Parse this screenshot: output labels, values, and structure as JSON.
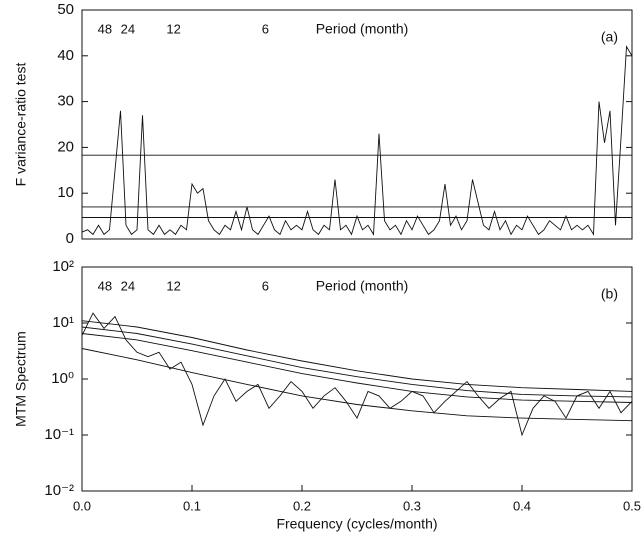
{
  "chart_data": [
    {
      "type": "line",
      "panel_label": "(a)",
      "ylabel": "F variance-ratio test",
      "period_label": "Period (month)",
      "period_ticks": [
        {
          "value": 0.0208,
          "label": "48"
        },
        {
          "value": 0.0417,
          "label": "24"
        },
        {
          "value": 0.0833,
          "label": "12"
        },
        {
          "value": 0.1667,
          "label": "6"
        }
      ],
      "xlim": [
        0,
        0.5
      ],
      "ylim": [
        0,
        50
      ],
      "yticks": [
        0,
        10,
        20,
        30,
        40,
        50
      ],
      "log_scale": false,
      "series": [
        {
          "color": "#111111",
          "x": [
            0,
            0.005,
            0.01,
            0.015,
            0.02,
            0.025,
            0.03,
            0.035,
            0.04,
            0.045,
            0.05,
            0.055,
            0.06,
            0.065,
            0.07,
            0.075,
            0.08,
            0.085,
            0.09,
            0.095,
            0.1,
            0.105,
            0.11,
            0.115,
            0.12,
            0.125,
            0.13,
            0.135,
            0.14,
            0.145,
            0.15,
            0.155,
            0.16,
            0.165,
            0.17,
            0.175,
            0.18,
            0.185,
            0.19,
            0.195,
            0.2,
            0.205,
            0.21,
            0.215,
            0.22,
            0.225,
            0.23,
            0.235,
            0.24,
            0.245,
            0.25,
            0.255,
            0.26,
            0.265,
            0.27,
            0.275,
            0.28,
            0.285,
            0.29,
            0.295,
            0.3,
            0.305,
            0.31,
            0.315,
            0.32,
            0.325,
            0.33,
            0.335,
            0.34,
            0.345,
            0.35,
            0.355,
            0.36,
            0.365,
            0.37,
            0.375,
            0.38,
            0.385,
            0.39,
            0.395,
            0.4,
            0.405,
            0.41,
            0.415,
            0.42,
            0.425,
            0.43,
            0.435,
            0.44,
            0.445,
            0.45,
            0.455,
            0.46,
            0.465,
            0.47,
            0.475,
            0.48,
            0.485,
            0.49,
            0.495,
            0.5
          ],
          "values": [
            1.5,
            2,
            1,
            3,
            1,
            2,
            15,
            28,
            3,
            1,
            2,
            27,
            2,
            1,
            3,
            1,
            2,
            1,
            3,
            2,
            12,
            10,
            11,
            4,
            2,
            1,
            3,
            2,
            6,
            2,
            7,
            2,
            1,
            3,
            5,
            2,
            1,
            4,
            2,
            3,
            2,
            6,
            2,
            1,
            3,
            2,
            13,
            2,
            3,
            1,
            5,
            2,
            3,
            1,
            23,
            4,
            2,
            3,
            1,
            4,
            2,
            5,
            3,
            1,
            2,
            4,
            12,
            3,
            5,
            2,
            4,
            13,
            8,
            3,
            2,
            6,
            2,
            4,
            1,
            3,
            2,
            5,
            3,
            1,
            2,
            4,
            3,
            2,
            5,
            2,
            3,
            2,
            3,
            1,
            30,
            21,
            28,
            3,
            22,
            42,
            40
          ]
        },
        {
          "color": "#111111",
          "x": [
            0,
            0.5
          ],
          "values": [
            18.3,
            18.3
          ]
        },
        {
          "color": "#111111",
          "x": [
            0,
            0.5
          ],
          "values": [
            7,
            7
          ]
        },
        {
          "color": "#111111",
          "x": [
            0,
            0.5
          ],
          "values": [
            4.7,
            4.7
          ]
        }
      ]
    },
    {
      "type": "line",
      "panel_label": "(b)",
      "ylabel": "MTM Spectrum",
      "xlabel": "Frequency (cycles/month)",
      "period_label": "Period (month)",
      "period_ticks": [
        {
          "value": 0.0208,
          "label": "48"
        },
        {
          "value": 0.0417,
          "label": "24"
        },
        {
          "value": 0.0833,
          "label": "12"
        },
        {
          "value": 0.1667,
          "label": "6"
        }
      ],
      "xlim": [
        0,
        0.5
      ],
      "xticks": [
        {
          "value": 0,
          "label": "0.0"
        },
        0.1,
        0.2,
        0.3,
        0.4,
        0.5
      ],
      "ylim": [
        0.01,
        100
      ],
      "log_scale": true,
      "yticks": [
        {
          "value": 0.01,
          "label": "10⁻²"
        },
        {
          "value": 0.1,
          "label": "10⁻¹"
        },
        {
          "value": 1,
          "label": "10⁰"
        },
        {
          "value": 10,
          "label": "10¹"
        },
        {
          "value": 100,
          "label": "10²"
        }
      ],
      "series": [
        {
          "color": "#111111",
          "x": [
            0,
            0.01,
            0.02,
            0.03,
            0.04,
            0.05,
            0.06,
            0.07,
            0.08,
            0.09,
            0.1,
            0.11,
            0.12,
            0.13,
            0.14,
            0.15,
            0.16,
            0.17,
            0.18,
            0.19,
            0.2,
            0.21,
            0.22,
            0.23,
            0.24,
            0.25,
            0.26,
            0.27,
            0.28,
            0.29,
            0.3,
            0.31,
            0.32,
            0.33,
            0.34,
            0.35,
            0.36,
            0.37,
            0.38,
            0.39,
            0.4,
            0.41,
            0.42,
            0.43,
            0.44,
            0.45,
            0.46,
            0.47,
            0.48,
            0.49,
            0.5
          ],
          "values": [
            6,
            15,
            8,
            13,
            5,
            3,
            2.5,
            3,
            1.5,
            2,
            0.8,
            0.15,
            0.5,
            1,
            0.4,
            0.6,
            0.8,
            0.3,
            0.5,
            0.9,
            0.6,
            0.3,
            0.5,
            0.7,
            0.4,
            0.2,
            0.6,
            0.5,
            0.3,
            0.4,
            0.6,
            0.5,
            0.25,
            0.4,
            0.6,
            0.9,
            0.5,
            0.3,
            0.45,
            0.6,
            0.1,
            0.3,
            0.5,
            0.4,
            0.2,
            0.5,
            0.6,
            0.3,
            0.6,
            0.25,
            0.4
          ]
        },
        {
          "color": "#111111",
          "x": [
            0,
            0.05,
            0.1,
            0.15,
            0.2,
            0.25,
            0.3,
            0.35,
            0.4,
            0.45,
            0.5
          ],
          "values": [
            11,
            8.5,
            5.5,
            3.3,
            2.1,
            1.4,
            1,
            0.8,
            0.7,
            0.65,
            0.6
          ]
        },
        {
          "color": "#111111",
          "x": [
            0,
            0.05,
            0.1,
            0.15,
            0.2,
            0.25,
            0.3,
            0.35,
            0.4,
            0.45,
            0.5
          ],
          "values": [
            8.5,
            6.5,
            4.2,
            2.6,
            1.6,
            1.1,
            0.8,
            0.62,
            0.53,
            0.5,
            0.48
          ]
        },
        {
          "color": "#111111",
          "x": [
            0,
            0.05,
            0.1,
            0.15,
            0.2,
            0.25,
            0.3,
            0.35,
            0.4,
            0.45,
            0.5
          ],
          "values": [
            6.5,
            5,
            3.2,
            2,
            1.25,
            0.85,
            0.6,
            0.48,
            0.42,
            0.4,
            0.38
          ]
        },
        {
          "color": "#111111",
          "x": [
            0,
            0.05,
            0.1,
            0.15,
            0.2,
            0.25,
            0.3,
            0.35,
            0.4,
            0.45,
            0.5
          ],
          "values": [
            3.5,
            2.2,
            1.3,
            0.8,
            0.5,
            0.35,
            0.27,
            0.22,
            0.2,
            0.19,
            0.18
          ]
        }
      ]
    }
  ]
}
